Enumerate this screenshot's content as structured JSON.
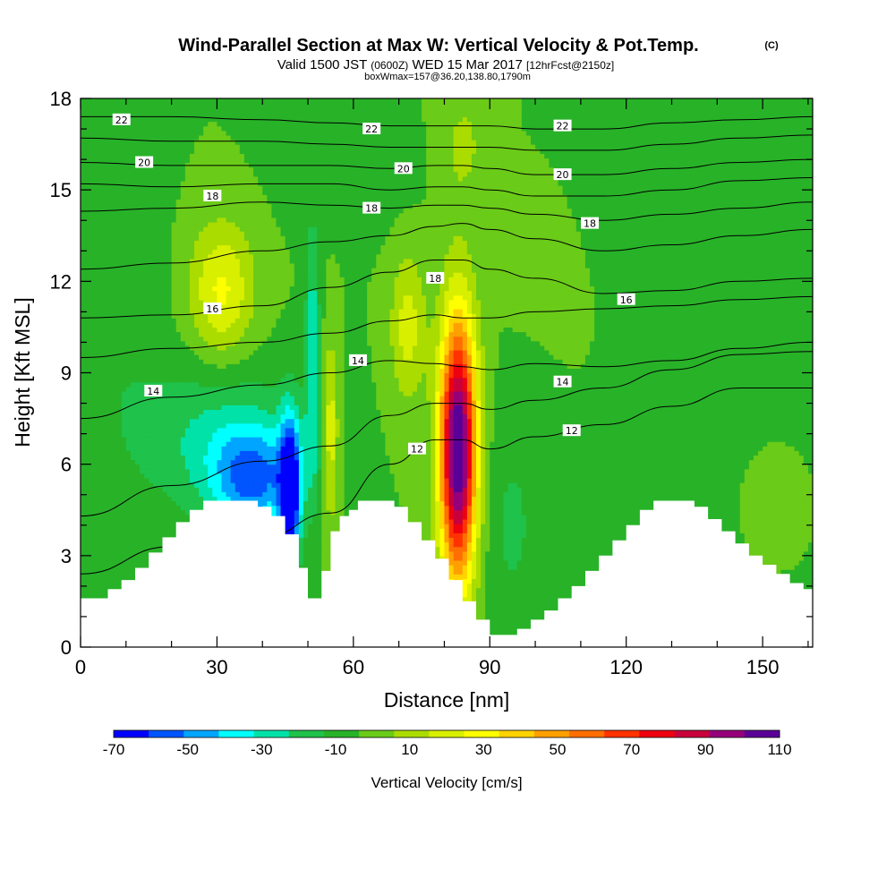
{
  "header": {
    "title": "Wind-Parallel Section at Max W: Vertical Velocity & Pot.Temp.",
    "copyright": "(C)",
    "valid_pre": "Valid 1500 JST",
    "valid_utc": "(0600Z)",
    "valid_post": "WED 15 Mar 2017",
    "forecast": "[12hrFcst@2150z]",
    "box_info": "boxWmax=157@36.20,138.80,1790m"
  },
  "chart_data": {
    "type": "heatmap",
    "title": "Wind-Parallel Section at Max W: Vertical Velocity & Pot.Temp.",
    "xlabel": "Distance [nm]",
    "ylabel": "Height [Kft MSL]",
    "xlim": [
      0,
      161
    ],
    "ylim": [
      0,
      18
    ],
    "x_ticks": [
      0,
      30,
      60,
      90,
      120,
      150
    ],
    "y_ticks": [
      0,
      3,
      6,
      9,
      12,
      15,
      18
    ],
    "colorbar": {
      "label": "Vertical Velocity [cm/s]",
      "tick_labels": [
        "-70",
        "-50",
        "-30",
        "-10",
        "10",
        "30",
        "50",
        "70",
        "90",
        "110"
      ],
      "tick_values": [
        -70,
        -50,
        -30,
        -10,
        10,
        30,
        50,
        70,
        90,
        110
      ],
      "bins": [
        -70,
        -60,
        -50,
        -40,
        -30,
        -20,
        -10,
        0,
        10,
        20,
        30,
        40,
        50,
        60,
        70,
        80,
        90,
        100,
        110
      ],
      "colors": [
        "#0000ff",
        "#0055ff",
        "#00a5ff",
        "#00ffff",
        "#00e2a8",
        "#1fc24a",
        "#28b228",
        "#6acb18",
        "#aadc00",
        "#d8f000",
        "#ffff00",
        "#ffd200",
        "#ffa000",
        "#ff6e00",
        "#ff3200",
        "#ee0010",
        "#c8003c",
        "#96007a",
        "#5a0096"
      ]
    },
    "background_w": 0,
    "updrafts": [
      {
        "x": 83,
        "y": 6.5,
        "rx": 4.0,
        "ry": 4.3,
        "w": 125
      },
      {
        "x": 31,
        "y": 11.7,
        "rx": 7.0,
        "ry": 2.2,
        "w": 32
      },
      {
        "x": 72,
        "y": 10.5,
        "rx": 3.8,
        "ry": 2.4,
        "w": 25
      },
      {
        "x": 55,
        "y": 7.0,
        "rx": 1.7,
        "ry": 3.0,
        "w": 28
      },
      {
        "x": 84,
        "y": 16.5,
        "rx": 6.0,
        "ry": 2.0,
        "w": 12
      },
      {
        "x": 150,
        "y": 5.2,
        "rx": 6.0,
        "ry": 1.5,
        "w": 10
      },
      {
        "x": 100,
        "y": 13.5,
        "rx": 8.0,
        "ry": 2.0,
        "w": 6
      }
    ],
    "downdrafts": [
      {
        "x": 46,
        "y": 5.0,
        "rx": 2.2,
        "ry": 2.5,
        "w": -75
      },
      {
        "x": 38,
        "y": 5.5,
        "rx": 9.0,
        "ry": 1.7,
        "w": -45
      },
      {
        "x": 30,
        "y": 6.8,
        "rx": 18.0,
        "ry": 2.5,
        "w": -22
      },
      {
        "x": 51,
        "y": 9.5,
        "rx": 1.6,
        "ry": 4.0,
        "w": -30
      },
      {
        "x": 95,
        "y": 4.0,
        "rx": 6.0,
        "ry": 3.5,
        "w": -12
      },
      {
        "x": 140,
        "y": 7.0,
        "rx": 12.0,
        "ry": 3.0,
        "w": -9
      },
      {
        "x": 8,
        "y": 11.0,
        "rx": 10.0,
        "ry": 5.0,
        "w": -8
      },
      {
        "x": 128,
        "y": 15.5,
        "rx": 18.0,
        "ry": 2.2,
        "w": -9
      },
      {
        "x": 60,
        "y": 16.0,
        "rx": 14.0,
        "ry": 2.0,
        "w": -7
      }
    ],
    "terrain": {
      "x": [
        0,
        3,
        6,
        9,
        12,
        15,
        18,
        21,
        24,
        27,
        30,
        33,
        36,
        39,
        42,
        45,
        48,
        50,
        52,
        53,
        55,
        57,
        59,
        61,
        63,
        66,
        69,
        72,
        75,
        78,
        81,
        84,
        87,
        90,
        93,
        96,
        99,
        102,
        105,
        108,
        111,
        114,
        117,
        120,
        123,
        126,
        129,
        132,
        135,
        138,
        141,
        144,
        147,
        150,
        153,
        156,
        159,
        161
      ],
      "height_kft": [
        1.6,
        1.6,
        1.9,
        2.2,
        2.6,
        3.1,
        3.6,
        4.1,
        4.5,
        4.8,
        4.8,
        4.8,
        4.8,
        4.6,
        4.3,
        3.7,
        2.6,
        1.6,
        1.6,
        2.5,
        3.8,
        4.3,
        4.5,
        4.8,
        4.8,
        4.8,
        4.6,
        4.1,
        3.5,
        2.9,
        2.2,
        1.5,
        0.9,
        0.4,
        0.4,
        0.6,
        0.9,
        1.2,
        1.6,
        2.0,
        2.5,
        3.0,
        3.5,
        4.0,
        4.5,
        4.8,
        4.8,
        4.8,
        4.6,
        4.2,
        3.8,
        3.4,
        3.0,
        2.7,
        2.4,
        2.1,
        1.9,
        1.9
      ]
    },
    "isentropes": [
      {
        "value": 12,
        "x": [
          0,
          20,
          40,
          55,
          68,
          78,
          84,
          90,
          100,
          115,
          130,
          145,
          161
        ],
        "y": [
          2.4,
          3.3,
          3.6,
          4.4,
          6.0,
          6.8,
          6.8,
          6.5,
          6.9,
          7.3,
          7.9,
          8.5,
          8.5
        ]
      },
      {
        "value": 13,
        "x": [
          0,
          20,
          40,
          55,
          68,
          78,
          84,
          90,
          100,
          115,
          130,
          145,
          161
        ],
        "y": [
          4.3,
          5.3,
          6.1,
          6.6,
          7.6,
          8.0,
          8.0,
          7.8,
          8.1,
          8.5,
          9.1,
          9.6,
          9.7
        ]
      },
      {
        "value": 14,
        "x": [
          0,
          20,
          40,
          55,
          68,
          78,
          84,
          90,
          100,
          115,
          130,
          145,
          161
        ],
        "y": [
          7.5,
          8.2,
          8.6,
          9.0,
          9.4,
          9.3,
          9.2,
          9.1,
          9.3,
          9.2,
          9.4,
          9.8,
          10.0
        ]
      },
      {
        "value": 15,
        "x": [
          0,
          20,
          40,
          55,
          68,
          78,
          84,
          90,
          100,
          115,
          130,
          145,
          161
        ],
        "y": [
          9.5,
          9.8,
          10.0,
          10.3,
          10.7,
          10.9,
          10.8,
          10.8,
          11.0,
          11.1,
          11.2,
          11.4,
          11.5
        ]
      },
      {
        "value": 16,
        "x": [
          0,
          20,
          40,
          55,
          68,
          78,
          84,
          90,
          100,
          115,
          130,
          145,
          161
        ],
        "y": [
          10.8,
          10.9,
          11.2,
          11.8,
          12.3,
          12.7,
          12.7,
          12.4,
          12.1,
          11.6,
          11.7,
          12.0,
          12.1
        ]
      },
      {
        "value": 17,
        "x": [
          0,
          20,
          40,
          55,
          68,
          78,
          84,
          90,
          100,
          115,
          130,
          145,
          161
        ],
        "y": [
          12.4,
          12.6,
          13.0,
          13.3,
          13.5,
          13.8,
          13.9,
          13.7,
          13.4,
          13.0,
          13.2,
          13.5,
          13.7
        ]
      },
      {
        "value": 18,
        "x": [
          0,
          20,
          40,
          55,
          68,
          78,
          84,
          90,
          100,
          115,
          130,
          145,
          161
        ],
        "y": [
          14.3,
          14.4,
          14.6,
          14.5,
          14.4,
          14.5,
          14.5,
          14.4,
          14.2,
          14.0,
          14.2,
          14.4,
          14.6
        ]
      },
      {
        "value": 19,
        "x": [
          0,
          20,
          40,
          55,
          68,
          78,
          84,
          90,
          100,
          115,
          130,
          145,
          161
        ],
        "y": [
          15.2,
          15.1,
          15.2,
          15.2,
          15.0,
          15.1,
          15.1,
          15.0,
          14.8,
          14.8,
          15.0,
          15.3,
          15.4
        ]
      },
      {
        "value": 20,
        "x": [
          0,
          20,
          40,
          55,
          68,
          78,
          84,
          90,
          100,
          115,
          130,
          145,
          161
        ],
        "y": [
          15.9,
          15.8,
          15.8,
          15.8,
          15.7,
          15.8,
          15.8,
          15.7,
          15.5,
          15.5,
          15.7,
          15.9,
          16.0
        ]
      },
      {
        "value": 21,
        "x": [
          0,
          20,
          40,
          55,
          68,
          78,
          84,
          90,
          100,
          115,
          130,
          145,
          161
        ],
        "y": [
          16.7,
          16.6,
          16.6,
          16.5,
          16.4,
          16.4,
          16.4,
          16.4,
          16.3,
          16.3,
          16.5,
          16.7,
          16.8
        ]
      },
      {
        "value": 22,
        "x": [
          0,
          20,
          40,
          55,
          68,
          78,
          84,
          90,
          100,
          115,
          130,
          145,
          161
        ],
        "y": [
          17.4,
          17.4,
          17.3,
          17.2,
          17.1,
          17.1,
          17.1,
          17.1,
          17.0,
          17.0,
          17.2,
          17.3,
          17.4
        ]
      }
    ],
    "contour_labels": [
      {
        "text": "22",
        "x": 9,
        "y": 17.3
      },
      {
        "text": "22",
        "x": 64,
        "y": 17.0
      },
      {
        "text": "22",
        "x": 106,
        "y": 17.1
      },
      {
        "text": "20",
        "x": 14,
        "y": 15.9
      },
      {
        "text": "20",
        "x": 71,
        "y": 15.7
      },
      {
        "text": "20",
        "x": 106,
        "y": 15.5
      },
      {
        "text": "18",
        "x": 29,
        "y": 14.8
      },
      {
        "text": "18",
        "x": 64,
        "y": 14.4
      },
      {
        "text": "18",
        "x": 112,
        "y": 13.9
      },
      {
        "text": "18",
        "x": 78,
        "y": 12.1
      },
      {
        "text": "16",
        "x": 29,
        "y": 11.1
      },
      {
        "text": "16",
        "x": 120,
        "y": 11.4
      },
      {
        "text": "14",
        "x": 16,
        "y": 8.4
      },
      {
        "text": "14",
        "x": 61,
        "y": 9.4
      },
      {
        "text": "14",
        "x": 106,
        "y": 8.7
      },
      {
        "text": "12",
        "x": 74,
        "y": 6.5
      },
      {
        "text": "12",
        "x": 108,
        "y": 7.1
      }
    ]
  }
}
